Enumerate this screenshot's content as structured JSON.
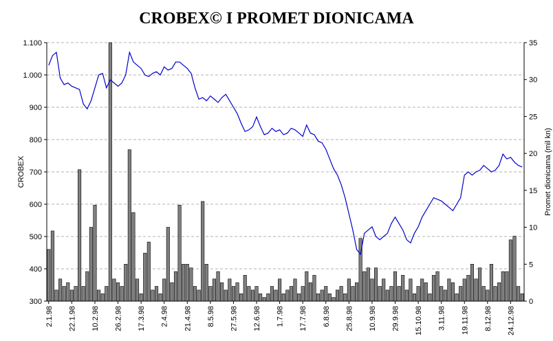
{
  "chart_data": {
    "type": "combo",
    "title": "CROBEX© I PROMET DIONICAMA",
    "ylabel": "CROBEX",
    "y2label": "Promet dionicama (mil kn)",
    "categories": [
      "2.1.98",
      null,
      null,
      null,
      null,
      null,
      "22.1.98",
      null,
      null,
      null,
      null,
      null,
      "10.2.98",
      null,
      null,
      null,
      null,
      null,
      "26.2.98",
      null,
      null,
      null,
      null,
      null,
      "17.3.98",
      null,
      null,
      null,
      null,
      null,
      "2.4.98",
      null,
      null,
      null,
      null,
      null,
      "21.4.98",
      null,
      null,
      null,
      null,
      null,
      "8.5.98",
      null,
      null,
      null,
      null,
      null,
      "27.5.98",
      null,
      null,
      null,
      null,
      null,
      "12.6.98",
      null,
      null,
      null,
      null,
      null,
      "1.7.98",
      null,
      null,
      null,
      null,
      null,
      "17.7.98",
      null,
      null,
      null,
      null,
      null,
      "6.8.98",
      null,
      null,
      null,
      null,
      null,
      "25.8.98",
      null,
      null,
      null,
      null,
      null,
      "10.9.98",
      null,
      null,
      null,
      null,
      null,
      "29.9.98",
      null,
      null,
      null,
      null,
      null,
      "15.10.98",
      null,
      null,
      null,
      null,
      null,
      "3.11.98",
      null,
      null,
      null,
      null,
      null,
      "19.11.98",
      null,
      null,
      null,
      null,
      null,
      "8.12.98",
      null,
      null,
      null,
      null,
      null,
      "24.12.98",
      null,
      null,
      null
    ],
    "series": [
      {
        "type": "bar",
        "axis": "y2",
        "color": "#808080",
        "values": [
          7,
          9.5,
          1.5,
          3,
          2,
          2.5,
          1.5,
          2,
          17.8,
          2,
          4,
          10,
          13,
          1.5,
          1,
          2,
          35,
          3,
          2.5,
          2,
          5,
          20.5,
          12,
          3,
          1,
          6.5,
          8,
          1.5,
          2,
          1,
          3,
          10,
          2.5,
          4,
          13,
          5,
          5,
          4.5,
          2,
          1.5,
          13.5,
          5,
          2,
          3,
          4,
          2.5,
          1.5,
          3,
          2,
          2.5,
          1,
          3.5,
          2,
          1.5,
          2,
          1,
          0.5,
          1,
          2,
          1.5,
          3,
          1,
          1.5,
          2,
          3,
          1,
          2,
          4,
          2.5,
          3.5,
          1,
          1.5,
          2,
          1,
          0.5,
          1.5,
          2,
          1,
          3,
          2,
          2.5,
          8.5,
          4,
          4.5,
          3,
          4.5,
          2,
          3,
          1.5,
          2,
          4,
          2,
          3.5,
          1.5,
          3,
          1,
          2,
          3,
          2.5,
          1,
          3.5,
          4,
          2,
          1.5,
          3,
          2.5,
          1,
          2,
          3,
          3.5,
          5,
          3,
          4.5,
          2,
          1.5,
          5,
          2,
          2.5,
          4,
          4,
          8.3,
          8.8,
          2,
          1
        ]
      },
      {
        "type": "line",
        "color": "#0000cc",
        "values": [
          1030,
          1060,
          1070,
          990,
          970,
          975,
          965,
          960,
          955,
          910,
          895,
          920,
          960,
          1000,
          1005,
          960,
          985,
          975,
          965,
          975,
          1000,
          1070,
          1040,
          1030,
          1020,
          1000,
          995,
          1005,
          1010,
          1000,
          1025,
          1015,
          1020,
          1040,
          1040,
          1030,
          1020,
          1005,
          960,
          925,
          930,
          920,
          935,
          925,
          915,
          930,
          940,
          920,
          900,
          880,
          850,
          825,
          830,
          840,
          870,
          840,
          815,
          820,
          835,
          825,
          830,
          815,
          820,
          835,
          830,
          820,
          810,
          845,
          820,
          815,
          795,
          790,
          770,
          740,
          710,
          690,
          660,
          620,
          570,
          520,
          460,
          445,
          510,
          520,
          530,
          500,
          490,
          500,
          510,
          540,
          560,
          540,
          520,
          490,
          480,
          510,
          530,
          560,
          580,
          600,
          620,
          615,
          610,
          600,
          590,
          580,
          600,
          620,
          690,
          700,
          690,
          700,
          705,
          720,
          710,
          700,
          705,
          720,
          755,
          740,
          745,
          730,
          720,
          715
        ]
      }
    ],
    "ylim": [
      300,
      1100
    ],
    "yticks": [
      300,
      400,
      500,
      600,
      700,
      800,
      900,
      {
        "value": 1000,
        "label": "1.000"
      },
      {
        "value": 1100,
        "label": "1.100"
      }
    ],
    "y2lim": [
      0,
      35
    ],
    "y2ticks": [
      0,
      5,
      10,
      15,
      20,
      25,
      30,
      35
    ],
    "grid": true
  }
}
